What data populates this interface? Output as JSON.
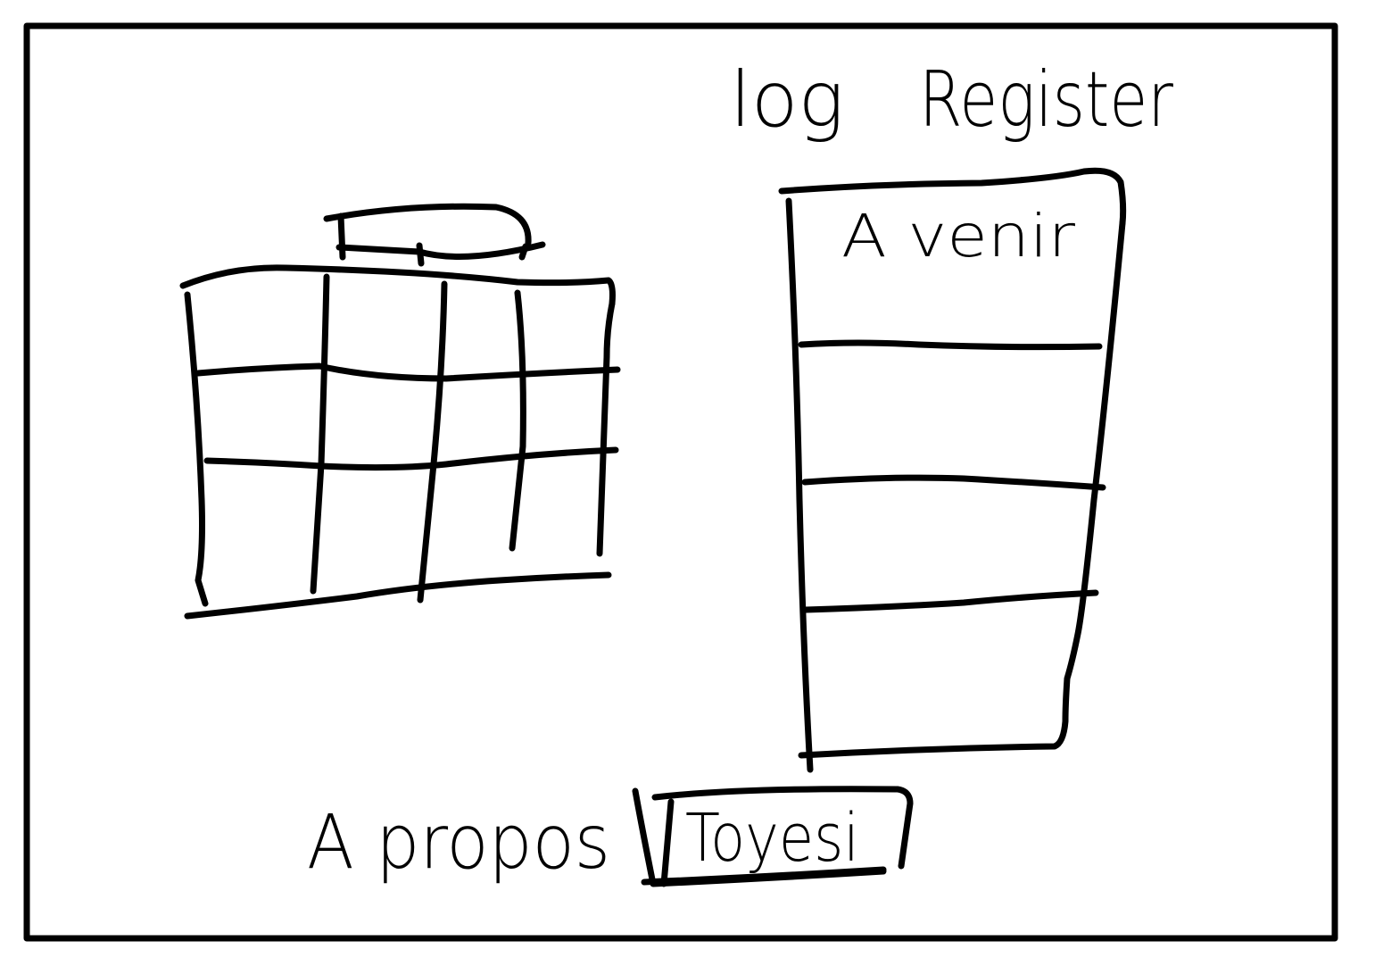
{
  "header": {
    "login_label": "log",
    "register_label": "Register"
  },
  "upcoming_panel": {
    "title": "A venir",
    "rows": [
      "",
      "",
      ""
    ]
  },
  "footer": {
    "about_label": "A propos",
    "logo_label": "Toyesi"
  },
  "colors": {
    "ink": "#000000",
    "paper": "#ffffff"
  }
}
